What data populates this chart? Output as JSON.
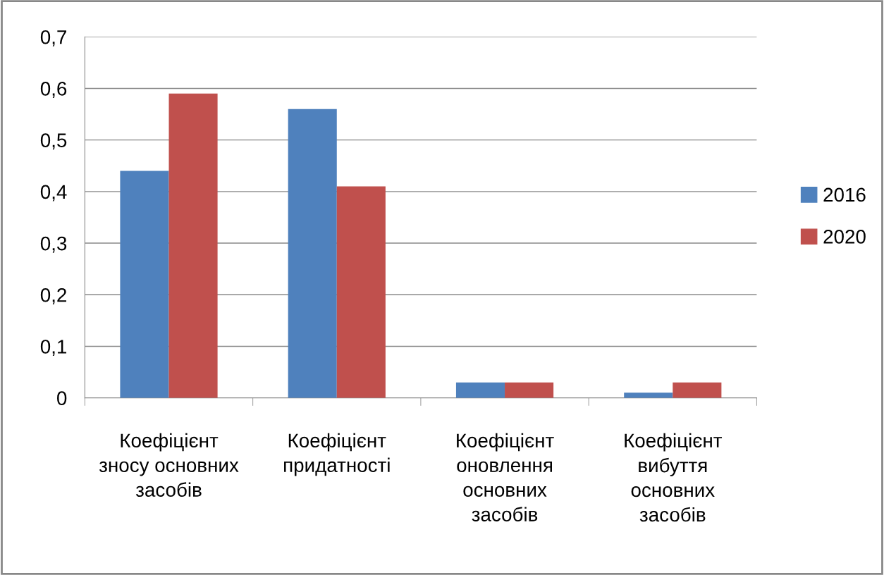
{
  "chart_data": {
    "type": "bar",
    "categories": [
      "Коефіцієнт\nзносу основних\nзасобів",
      "Коефіцієнт\nпридатності",
      "Коефіцієнт\nоновлення\nосновних\nзасобів",
      "Коефіцієнт\nвибуття\nосновних\nзасобів"
    ],
    "series": [
      {
        "name": "2016",
        "color": "#4f81bd",
        "values": [
          0.44,
          0.56,
          0.03,
          0.01
        ]
      },
      {
        "name": "2020",
        "color": "#c0504d",
        "values": [
          0.59,
          0.41,
          0.03,
          0.03
        ]
      }
    ],
    "ylim": [
      0,
      0.7
    ],
    "yticks": [
      {
        "value": 0,
        "label": "0"
      },
      {
        "value": 0.1,
        "label": "0,1"
      },
      {
        "value": 0.2,
        "label": "0,2"
      },
      {
        "value": 0.3,
        "label": "0,3"
      },
      {
        "value": 0.4,
        "label": "0,4"
      },
      {
        "value": 0.5,
        "label": "0,5"
      },
      {
        "value": 0.6,
        "label": "0,6"
      },
      {
        "value": 0.7,
        "label": "0,7"
      }
    ],
    "grid": "y",
    "legend": "right"
  }
}
